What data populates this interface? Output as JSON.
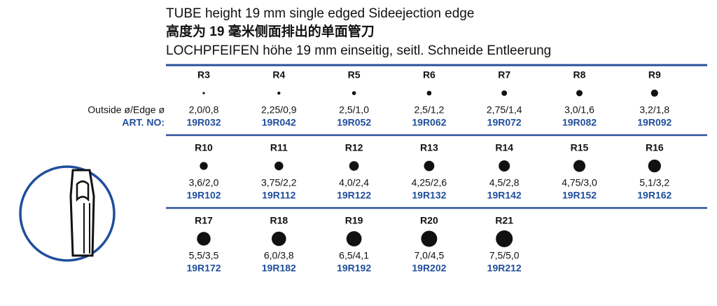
{
  "header": {
    "lines": [
      "TUBE height 19 mm single edged Sideejection edge",
      "高度为 19 毫米侧面排出的单面管刀",
      "LOCHPFEIFEN höhe 19 mm einseitig, seitl. Schneide Entleerung"
    ]
  },
  "labels": {
    "dims": "Outside ø/Edge ø",
    "art": "ART. NO:"
  },
  "rows": [
    {
      "items": [
        {
          "name": "R3",
          "dims": "2,0/0,8",
          "art": "19R032"
        },
        {
          "name": "R4",
          "dims": "2,25/0,9",
          "art": "19R042"
        },
        {
          "name": "R5",
          "dims": "2,5/1,0",
          "art": "19R052"
        },
        {
          "name": "R6",
          "dims": "2,5/1,2",
          "art": "19R062"
        },
        {
          "name": "R7",
          "dims": "2,75/1,4",
          "art": "19R072"
        },
        {
          "name": "R8",
          "dims": "3,0/1,6",
          "art": "19R082"
        },
        {
          "name": "R9",
          "dims": "3,2/1,8",
          "art": "19R092"
        }
      ]
    },
    {
      "items": [
        {
          "name": "R10",
          "dims": "3,6/2,0",
          "art": "19R102"
        },
        {
          "name": "R11",
          "dims": "3,75/2,2",
          "art": "19R112"
        },
        {
          "name": "R12",
          "dims": "4,0/2,4",
          "art": "19R122"
        },
        {
          "name": "R13",
          "dims": "4,25/2,6",
          "art": "19R132"
        },
        {
          "name": "R14",
          "dims": "4,5/2,8",
          "art": "19R142"
        },
        {
          "name": "R15",
          "dims": "4,75/3,0",
          "art": "19R152"
        },
        {
          "name": "R16",
          "dims": "5,1/3,2",
          "art": "19R162"
        }
      ]
    },
    {
      "items": [
        {
          "name": "R17",
          "dims": "5,5/3,5",
          "art": "19R172"
        },
        {
          "name": "R18",
          "dims": "6,0/3,8",
          "art": "19R182"
        },
        {
          "name": "R19",
          "dims": "6,5/4,1",
          "art": "19R192"
        },
        {
          "name": "R20",
          "dims": "7,0/4,5",
          "art": "19R202"
        },
        {
          "name": "R21",
          "dims": "7,5/5,0",
          "art": "19R212"
        }
      ]
    }
  ]
}
